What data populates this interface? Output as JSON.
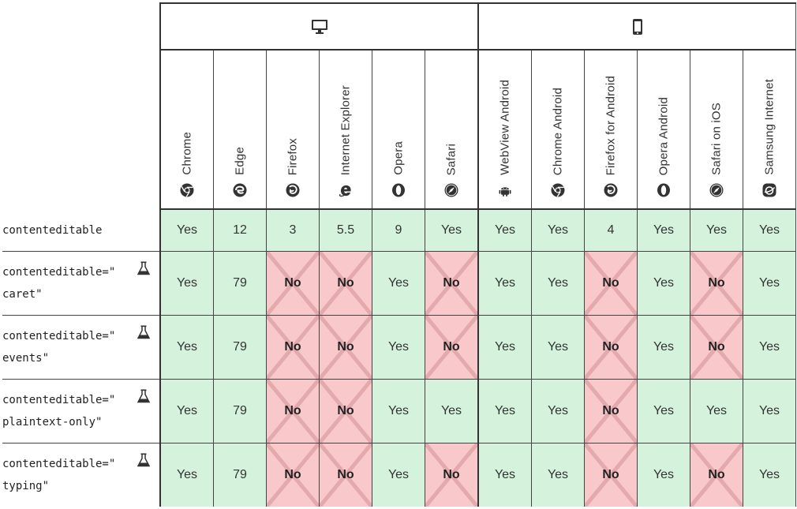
{
  "platforms": [
    {
      "name": "desktop",
      "icon": "desktop-monitor-icon"
    },
    {
      "name": "mobile",
      "icon": "mobile-phone-icon"
    }
  ],
  "browsers": [
    {
      "label": "Chrome",
      "icon": "chrome-icon"
    },
    {
      "label": "Edge",
      "icon": "edge-icon"
    },
    {
      "label": "Firefox",
      "icon": "firefox-icon"
    },
    {
      "label": "Internet Explorer",
      "icon": "internet-explorer-icon"
    },
    {
      "label": "Opera",
      "icon": "opera-icon"
    },
    {
      "label": "Safari",
      "icon": "safari-icon"
    },
    {
      "label": "WebView Android",
      "icon": "android-icon"
    },
    {
      "label": "Chrome Android",
      "icon": "chrome-icon"
    },
    {
      "label": "Firefox for Android",
      "icon": "firefox-icon"
    },
    {
      "label": "Opera Android",
      "icon": "opera-icon"
    },
    {
      "label": "Safari on iOS",
      "icon": "safari-icon"
    },
    {
      "label": "Samsung Internet",
      "icon": "samsung-internet-icon"
    }
  ],
  "features": [
    {
      "line1": "contenteditable",
      "line2": "",
      "experimental": false,
      "support": [
        "Yes",
        "12",
        "3",
        "5.5",
        "9",
        "Yes",
        "Yes",
        "Yes",
        "4",
        "Yes",
        "Yes",
        "Yes"
      ]
    },
    {
      "line1": "contenteditable=\"",
      "line2": "caret\"",
      "experimental": true,
      "support": [
        "Yes",
        "79",
        "No",
        "No",
        "Yes",
        "No",
        "Yes",
        "Yes",
        "No",
        "Yes",
        "No",
        "Yes"
      ]
    },
    {
      "line1": "contenteditable=\"",
      "line2": "events\"",
      "experimental": true,
      "support": [
        "Yes",
        "79",
        "No",
        "No",
        "Yes",
        "No",
        "Yes",
        "Yes",
        "No",
        "Yes",
        "No",
        "Yes"
      ]
    },
    {
      "line1": "contenteditable=\"",
      "line2": "plaintext-only\"",
      "experimental": true,
      "support": [
        "Yes",
        "79",
        "No",
        "No",
        "Yes",
        "Yes",
        "Yes",
        "Yes",
        "No",
        "Yes",
        "Yes",
        "Yes"
      ]
    },
    {
      "line1": "contenteditable=\"",
      "line2": "typing\"",
      "experimental": true,
      "support": [
        "Yes",
        "79",
        "No",
        "No",
        "Yes",
        "No",
        "Yes",
        "Yes",
        "No",
        "Yes",
        "No",
        "Yes"
      ]
    }
  ],
  "colors": {
    "supported_bg": "#d4f2dc",
    "unsupported_bg": "#f8c8cb",
    "unsupported_cross": "#e3a9ad",
    "border": "#333333"
  }
}
